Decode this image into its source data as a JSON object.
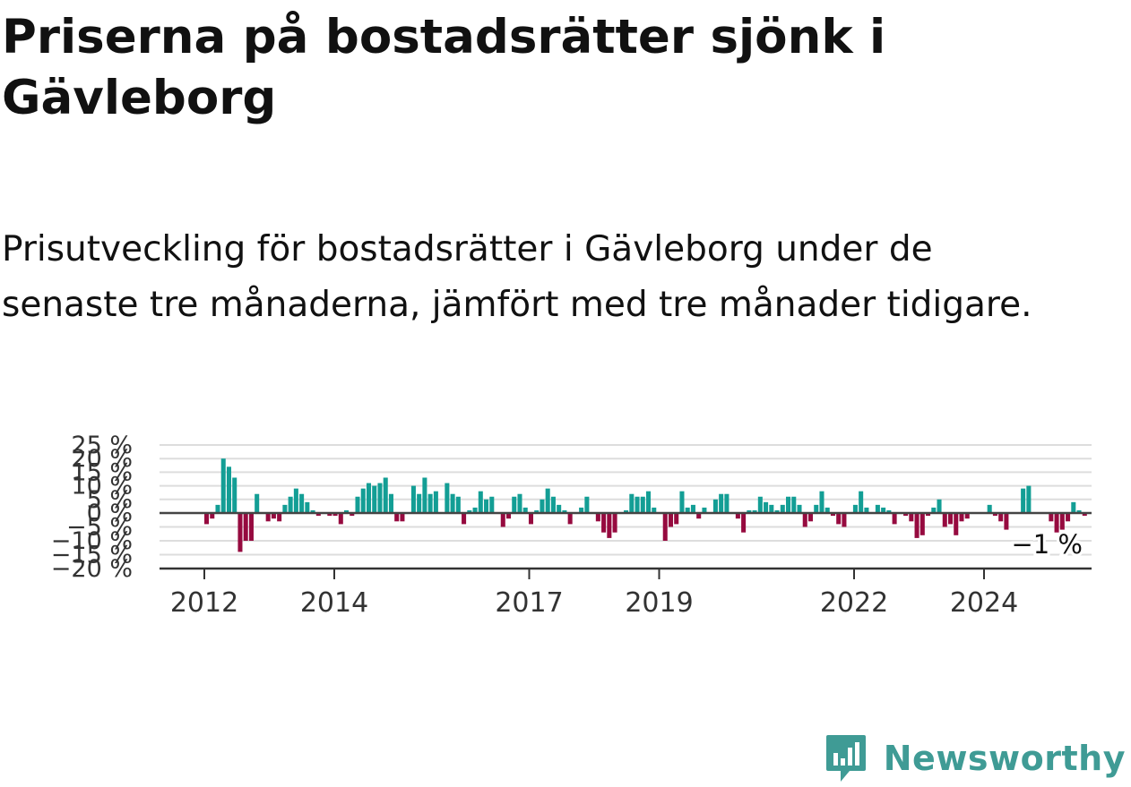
{
  "title": "Priserna på bostadsrätter sjönk i Gävleborg",
  "subtitle": "Prisutveckling för bostadsrätter i Gävleborg under de senaste tre månaderna, jämfört med tre månader tidigare.",
  "brand": {
    "name": "Newsworthy",
    "icon": "newsworthy-bar-chart-icon",
    "color": "#3f9b95"
  },
  "colors": {
    "positive": "#139e95",
    "negative": "#960a3f",
    "zero_line": "#444444",
    "gridline": "#dddddd",
    "axis_text": "#333333"
  },
  "chart_data": {
    "type": "bar",
    "title": "Priserna på bostadsrätter sjönk i Gävleborg",
    "xlabel": "",
    "ylabel": "",
    "y_unit": "%",
    "ylim": [
      -20,
      25
    ],
    "y_ticks": [
      {
        "value": 25,
        "label": "25 %"
      },
      {
        "value": 20,
        "label": "20 %"
      },
      {
        "value": 15,
        "label": "15 %"
      },
      {
        "value": 10,
        "label": "10 %"
      },
      {
        "value": 5,
        "label": "5 %"
      },
      {
        "value": 0,
        "label": "0 %"
      },
      {
        "value": -5,
        "label": "−5 %"
      },
      {
        "value": -10,
        "label": "−10 %"
      },
      {
        "value": -15,
        "label": "−15 %"
      },
      {
        "value": -20,
        "label": "−20 %"
      }
    ],
    "x_ticks": [
      {
        "year": 2012,
        "label": "2012"
      },
      {
        "year": 2014,
        "label": "2014"
      },
      {
        "year": 2017,
        "label": "2017"
      },
      {
        "year": 2019,
        "label": "2019"
      },
      {
        "year": 2022,
        "label": "2022"
      },
      {
        "year": 2024,
        "label": "2024"
      }
    ],
    "grid": true,
    "start_year": 2012,
    "end_year": 2025.6,
    "annotation": {
      "value": -1,
      "label": "−1 %"
    },
    "values": [
      -4,
      -2,
      3,
      20,
      17,
      13,
      -14,
      -10,
      -10,
      7,
      0,
      -3,
      -2,
      -3,
      3,
      6,
      9,
      7,
      4,
      1,
      -1,
      0,
      -1,
      -1,
      -4,
      1,
      -1,
      6,
      9,
      11,
      10,
      11,
      13,
      7,
      -3,
      -3,
      0,
      10,
      7,
      13,
      7,
      8,
      0,
      11,
      7,
      6,
      -4,
      1,
      2,
      8,
      5,
      6,
      0,
      -5,
      -2,
      6,
      7,
      2,
      -4,
      1,
      5,
      9,
      6,
      3,
      1,
      -4,
      0,
      2,
      6,
      0,
      -3,
      -7,
      -9,
      -7,
      0,
      1,
      7,
      6,
      6,
      8,
      2,
      0,
      -10,
      -5,
      -4,
      8,
      2,
      3,
      -2,
      2,
      0,
      5,
      7,
      7,
      0,
      -2,
      -7,
      1,
      1,
      6,
      4,
      3,
      1,
      3,
      6,
      6,
      3,
      -5,
      -3,
      3,
      8,
      2,
      -1,
      -4,
      -5,
      0,
      3,
      8,
      2,
      0,
      3,
      2,
      1,
      -4,
      0,
      -1,
      -3,
      -9,
      -8,
      -1,
      2,
      5,
      -5,
      -4,
      -8,
      -3,
      -2,
      0,
      0,
      0,
      3,
      -1,
      -3,
      -6,
      0,
      0,
      9,
      10,
      0,
      0,
      0,
      -3,
      -7,
      -6,
      -3,
      4,
      1,
      -1
    ]
  }
}
